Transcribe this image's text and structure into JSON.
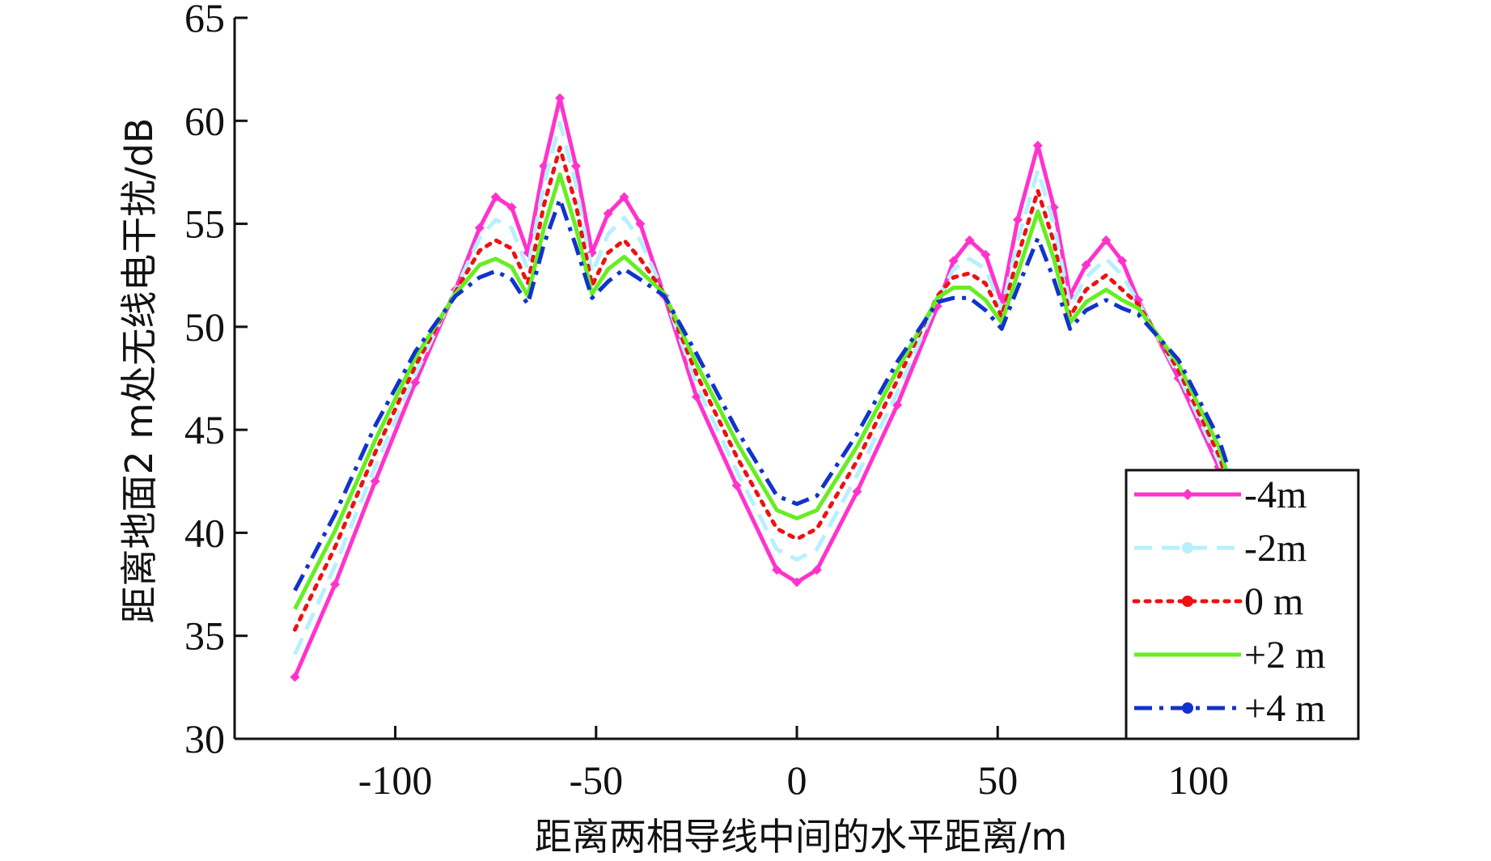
{
  "chart_data": {
    "type": "line",
    "xlabel": "距离两相导线中间的水平距离/m",
    "ylabel": "距离地面2 m处无线电干扰/dB",
    "xlim": [
      -140,
      140
    ],
    "ylim": [
      30,
      65
    ],
    "xticks": [
      -100,
      -50,
      0,
      50,
      100
    ],
    "yticks": [
      30,
      35,
      40,
      45,
      50,
      55,
      60,
      65
    ],
    "grid": false,
    "legend_position": "bottom-right",
    "x": [
      -125,
      -115,
      -105,
      -95,
      -85,
      -79,
      -75,
      -71,
      -67,
      -63,
      -59,
      -55,
      -51,
      -47,
      -43,
      -39,
      -33,
      -25,
      -15,
      -5,
      0,
      5,
      15,
      25,
      35,
      39,
      43,
      47,
      51,
      55,
      60,
      64,
      68,
      72,
      77,
      81,
      85,
      95,
      105,
      108
    ],
    "series": [
      {
        "name": "-4m",
        "color": "#ff33cc",
        "dash": "solid",
        "marker": "diamond",
        "values": [
          33.0,
          37.5,
          42.5,
          47.3,
          51.8,
          54.8,
          56.3,
          55.8,
          53.6,
          57.8,
          61.1,
          57.8,
          53.6,
          55.5,
          56.3,
          55.0,
          51.5,
          46.6,
          42.3,
          38.2,
          37.6,
          38.2,
          42.0,
          46.2,
          51.0,
          53.2,
          54.2,
          53.5,
          51.2,
          55.2,
          58.8,
          55.8,
          51.5,
          53.0,
          54.2,
          53.2,
          51.3,
          47.5,
          43.2,
          41.5
        ]
      },
      {
        "name": "-2m",
        "color": "#b7f0ff",
        "dash": "dashed",
        "marker": "circle",
        "values": [
          34.1,
          38.4,
          43.2,
          47.7,
          51.8,
          54.3,
          55.2,
          54.8,
          52.8,
          56.9,
          59.9,
          56.9,
          52.6,
          54.5,
          55.3,
          54.2,
          51.6,
          47.2,
          43.0,
          39.2,
          38.7,
          39.2,
          42.8,
          46.8,
          51.3,
          52.8,
          53.3,
          52.8,
          50.8,
          54.2,
          57.6,
          55.0,
          51.0,
          52.4,
          53.3,
          52.5,
          51.2,
          47.7,
          43.5,
          41.8
        ]
      },
      {
        "name": "0 m",
        "color": "#ee1111",
        "dash": "dotted",
        "marker": "circle",
        "values": [
          35.3,
          39.3,
          43.9,
          48.1,
          51.7,
          53.7,
          54.2,
          53.8,
          52.1,
          55.9,
          58.7,
          55.9,
          52.0,
          53.6,
          54.2,
          53.3,
          51.6,
          47.7,
          43.7,
          40.2,
          39.7,
          40.2,
          43.5,
          47.4,
          51.5,
          52.4,
          52.6,
          52.1,
          50.5,
          53.4,
          56.6,
          54.1,
          50.5,
          51.8,
          52.5,
          51.8,
          51.1,
          47.9,
          43.8,
          42.1
        ]
      },
      {
        "name": "+2 m",
        "color": "#66ee22",
        "dash": "solid",
        "marker": "none",
        "values": [
          36.3,
          40.1,
          44.5,
          48.5,
          51.6,
          53.0,
          53.3,
          52.9,
          51.5,
          54.8,
          57.4,
          54.8,
          51.6,
          52.8,
          53.4,
          52.7,
          51.6,
          48.2,
          44.4,
          41.1,
          40.7,
          41.1,
          44.2,
          47.9,
          51.4,
          51.9,
          51.9,
          51.3,
          50.2,
          52.6,
          55.6,
          53.3,
          50.2,
          51.2,
          51.8,
          51.3,
          50.9,
          48.2,
          44.2,
          42.4
        ]
      },
      {
        "name": "+4 m",
        "color": "#1133cc",
        "dash": "dashdot",
        "marker": "circle",
        "values": [
          37.2,
          40.9,
          45.2,
          48.8,
          51.5,
          52.4,
          52.7,
          52.3,
          51.1,
          54.0,
          56.2,
          53.9,
          51.4,
          52.2,
          52.8,
          52.3,
          51.5,
          48.7,
          45.0,
          41.8,
          41.4,
          41.8,
          44.8,
          48.3,
          51.2,
          51.4,
          51.4,
          50.8,
          49.9,
          51.9,
          54.3,
          52.3,
          49.9,
          50.8,
          51.3,
          50.9,
          50.6,
          48.4,
          44.6,
          42.8
        ]
      }
    ]
  }
}
